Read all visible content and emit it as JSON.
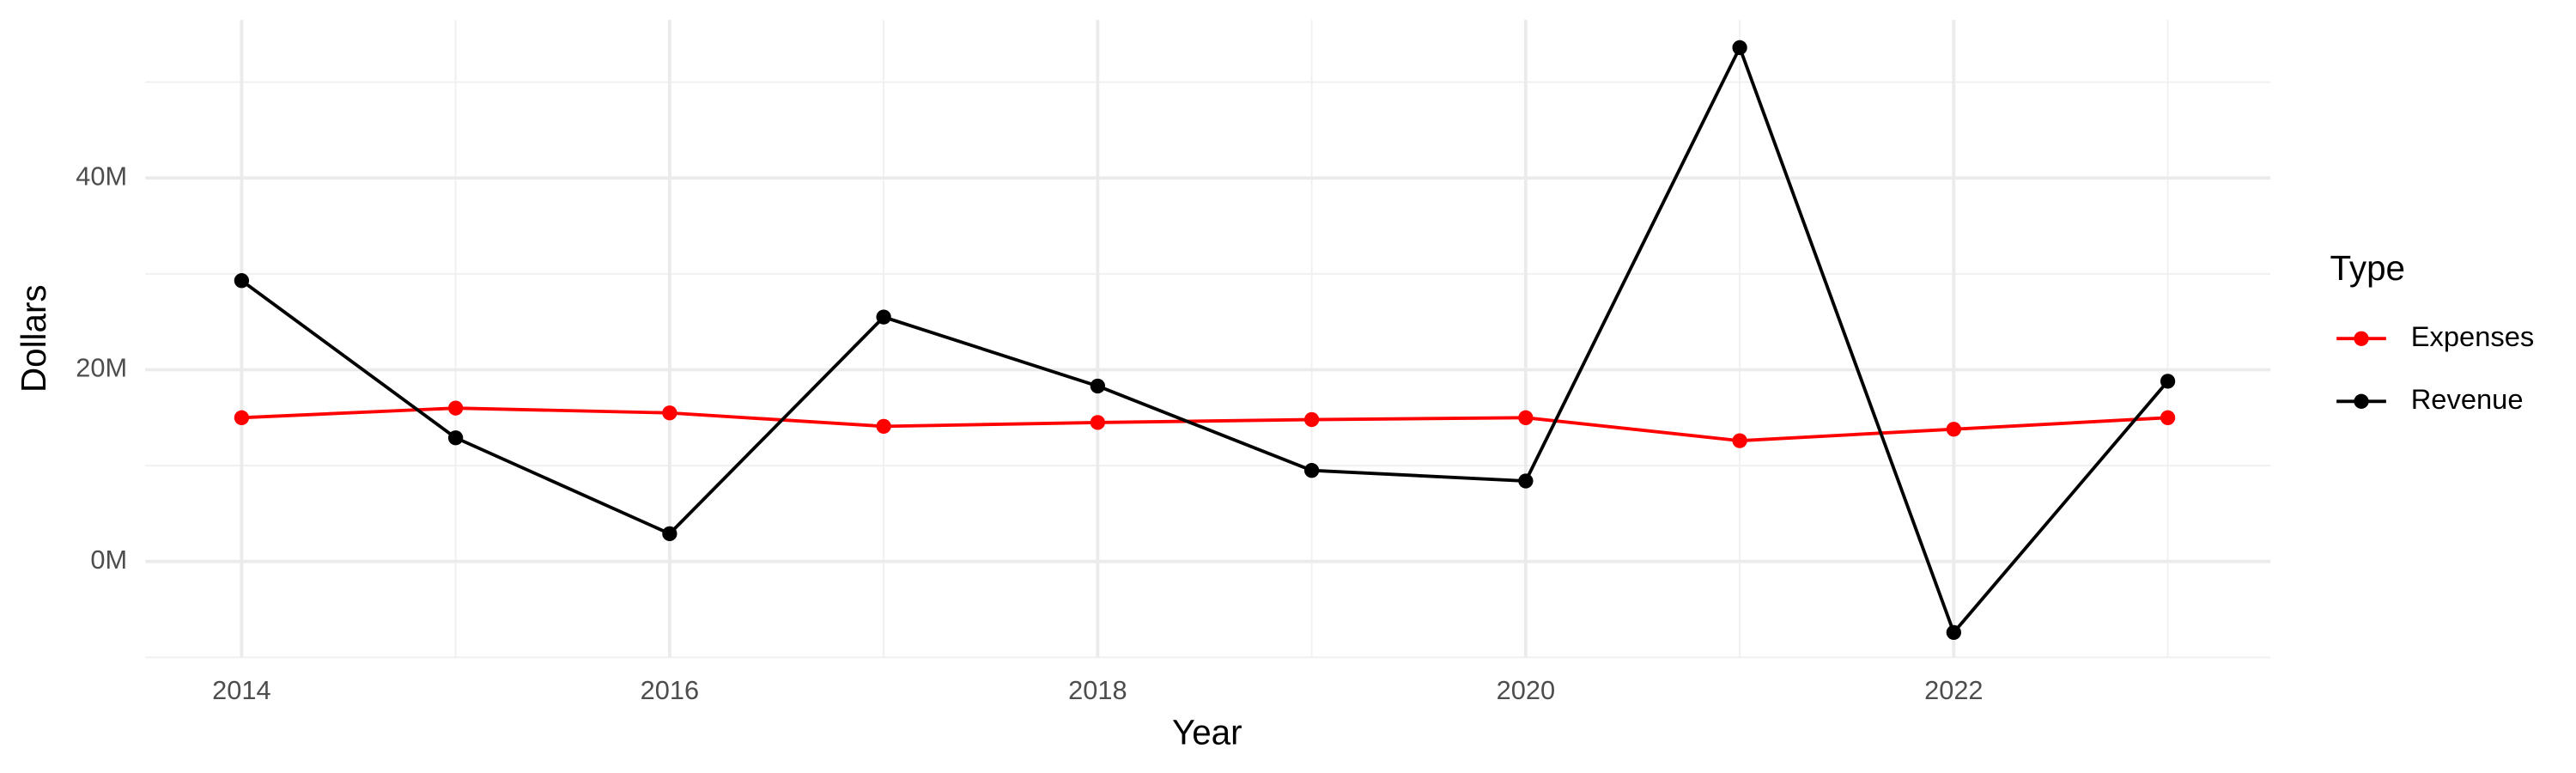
{
  "chart_data": {
    "type": "line",
    "x_label": "Year",
    "y_label": "Dollars",
    "legend_title": "Type",
    "x": [
      2014,
      2015,
      2016,
      2017,
      2018,
      2019,
      2020,
      2021,
      2022,
      2023
    ],
    "series": [
      {
        "name": "Expenses",
        "color": "#ff0000",
        "values": [
          15.0,
          16.0,
          15.5,
          14.1,
          14.5,
          14.8,
          15.0,
          12.6,
          13.8,
          15.0
        ]
      },
      {
        "name": "Revenue",
        "color": "#000000",
        "values": [
          29.3,
          12.9,
          2.9,
          25.5,
          18.3,
          9.5,
          8.4,
          53.6,
          -7.4,
          18.8
        ]
      }
    ],
    "xlim": [
      2013.55,
      2023.48
    ],
    "ylim": [
      -10,
      56.5
    ],
    "xticks": [
      2014,
      2016,
      2018,
      2020,
      2022
    ],
    "x_minor_ticks": [
      2015,
      2017,
      2019,
      2021,
      2023
    ],
    "yticks": [
      {
        "value": 0,
        "label": "0M"
      },
      {
        "value": 20,
        "label": "20M"
      },
      {
        "value": 40,
        "label": "40M"
      }
    ],
    "y_minor_ticks": [
      -10,
      10,
      30,
      50
    ],
    "grid": true,
    "legend_position": "right"
  }
}
